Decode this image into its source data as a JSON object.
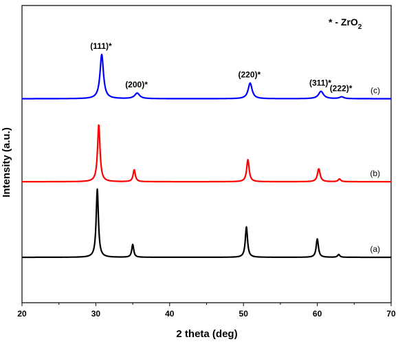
{
  "chart_data": {
    "type": "line",
    "xlabel": "2 theta (deg)",
    "ylabel": "Intensity (a.u.)",
    "xlim": [
      20,
      70
    ],
    "x_ticks": [
      "20",
      "30",
      "40",
      "50",
      "60",
      "70"
    ],
    "y_ticks_shown": false,
    "grid": false,
    "annotation": {
      "text": "* - ZrO",
      "subscript": "2",
      "position": "top-right"
    },
    "series": [
      {
        "name": "(a)",
        "color": "#000000",
        "baseline": 0.0,
        "peaks": [
          {
            "x": 30.2,
            "height": 0.74,
            "width": 0.18
          },
          {
            "x": 35.0,
            "height": 0.14,
            "width": 0.16
          },
          {
            "x": 50.4,
            "height": 0.33,
            "width": 0.18
          },
          {
            "x": 60.0,
            "height": 0.2,
            "width": 0.18
          },
          {
            "x": 62.9,
            "height": 0.03,
            "width": 0.18
          }
        ]
      },
      {
        "name": "(b)",
        "color": "#ff0000",
        "baseline": 0.82,
        "peaks": [
          {
            "x": 30.4,
            "height": 0.62,
            "width": 0.2
          },
          {
            "x": 35.2,
            "height": 0.13,
            "width": 0.18
          },
          {
            "x": 50.6,
            "height": 0.24,
            "width": 0.2
          },
          {
            "x": 60.2,
            "height": 0.14,
            "width": 0.22
          },
          {
            "x": 63.0,
            "height": 0.03,
            "width": 0.2
          }
        ]
      },
      {
        "name": "(c)",
        "color": "#0000ff",
        "baseline": 1.72,
        "peaks": [
          {
            "x": 30.8,
            "height": 0.48,
            "width": 0.28
          },
          {
            "x": 35.6,
            "height": 0.06,
            "width": 0.4
          },
          {
            "x": 50.9,
            "height": 0.17,
            "width": 0.32
          },
          {
            "x": 60.5,
            "height": 0.08,
            "width": 0.4
          },
          {
            "x": 63.3,
            "height": 0.02,
            "width": 0.35
          }
        ]
      }
    ],
    "peak_labels": [
      {
        "text": "(111)*",
        "x": 30.8
      },
      {
        "text": "(200)*",
        "x": 35.6
      },
      {
        "text": "(220)*",
        "x": 50.9
      },
      {
        "text": "(311)*",
        "x": 60.5
      },
      {
        "text": "(222)*",
        "x": 63.3
      }
    ]
  }
}
